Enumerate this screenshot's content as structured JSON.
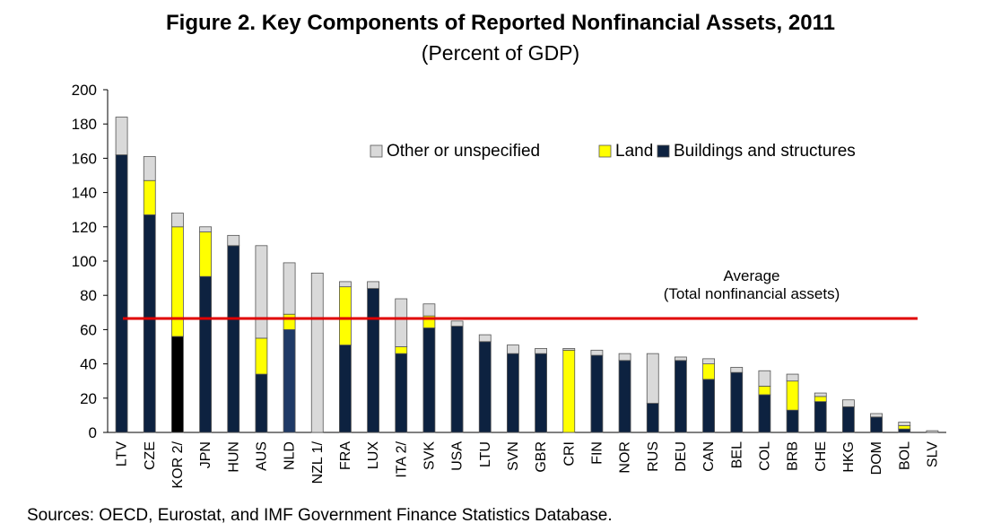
{
  "chart_data": {
    "type": "bar",
    "stacked": true,
    "title": "Figure 2. Key Components of Reported Nonfinancial Assets, 2011",
    "subtitle": "(Percent of GDP)",
    "ylim": [
      0,
      200
    ],
    "yticks": [
      0,
      20,
      40,
      60,
      80,
      100,
      120,
      140,
      160,
      180,
      200
    ],
    "categories": [
      "LTV",
      "CZE",
      "KOR 2/",
      "JPN",
      "HUN",
      "AUS",
      "NLD",
      "NZL 1/",
      "FRA",
      "LUX",
      "ITA 2/",
      "SVK",
      "USA",
      "LTU",
      "SVN",
      "GBR",
      "CRI",
      "FIN",
      "NOR",
      "RUS",
      "DEU",
      "CAN",
      "BEL",
      "COL",
      "BRB",
      "CHE",
      "HKG",
      "DOM",
      "BOL",
      "SLV"
    ],
    "series": [
      {
        "name": "Buildings and structures",
        "color": "#0d2240",
        "values": [
          162,
          127,
          56,
          91,
          109,
          34,
          60,
          0,
          51,
          84,
          46,
          61,
          62,
          53,
          46,
          46,
          0,
          45,
          42,
          17,
          42,
          31,
          35,
          22,
          13,
          18,
          15,
          9,
          2,
          0
        ]
      },
      {
        "name": "Land",
        "color": "#ffff00",
        "values": [
          0,
          20,
          64,
          26,
          0,
          21,
          9,
          0,
          34,
          0,
          4,
          7,
          0,
          0,
          0,
          0,
          48,
          0,
          0,
          0,
          0,
          9,
          0,
          5,
          17,
          3,
          0,
          0,
          2,
          0
        ]
      },
      {
        "name": "Other or unspecified",
        "color": "#d9d9d9",
        "values": [
          22,
          14,
          8,
          3,
          6,
          54,
          30,
          93,
          3,
          4,
          28,
          7,
          3,
          4,
          5,
          3,
          1,
          3,
          4,
          29,
          2,
          3,
          3,
          9,
          4,
          2,
          4,
          2,
          2,
          1
        ]
      }
    ],
    "special_bar_colors": {
      "KOR 2/": "#000000",
      "NLD": "#1f3a66"
    },
    "average": {
      "value": 66.5,
      "label_line1": "Average",
      "label_line2": "(Total nonfinancial assets)",
      "color": "#e00000"
    },
    "legend_order": [
      "Other or unspecified",
      "Land",
      "Buildings and structures"
    ],
    "legend_position": "top-right",
    "grid": false
  },
  "source_note": "Sources: OECD, Eurostat, and IMF Government Finance Statistics Database."
}
